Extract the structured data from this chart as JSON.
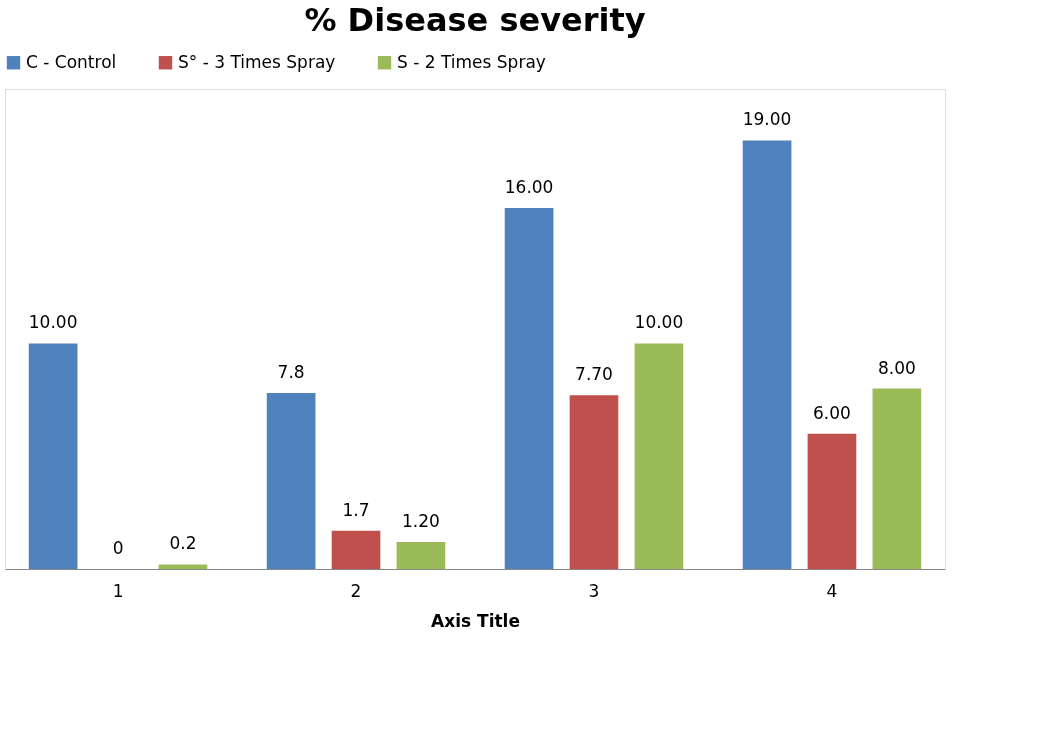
{
  "chart_data": {
    "type": "bar",
    "title": "%  Disease severity",
    "xlabel": "Axis Title",
    "categories": [
      "1",
      "2",
      "3",
      "4"
    ],
    "series": [
      {
        "name": "C - Control",
        "color": "#4f81bd",
        "values": [
          10,
          7.8,
          16,
          19
        ],
        "value_labels": [
          "10.00",
          "7.8",
          "16.00",
          "19.00"
        ]
      },
      {
        "name": "S° - 3 Times Spray",
        "color": "#c0504d",
        "values": [
          0,
          1.7,
          7.7,
          6
        ],
        "value_labels": [
          "0",
          "1.7",
          "7.70",
          "6.00"
        ]
      },
      {
        "name": "S -  2 Times Spray",
        "color": "#9bbb59",
        "values": [
          0.2,
          1.2,
          10,
          8
        ],
        "value_labels": [
          "0.2",
          "1.20",
          "10.00",
          "8.00"
        ]
      }
    ],
    "legend": "top",
    "grid": false,
    "tick_labels": "x"
  }
}
